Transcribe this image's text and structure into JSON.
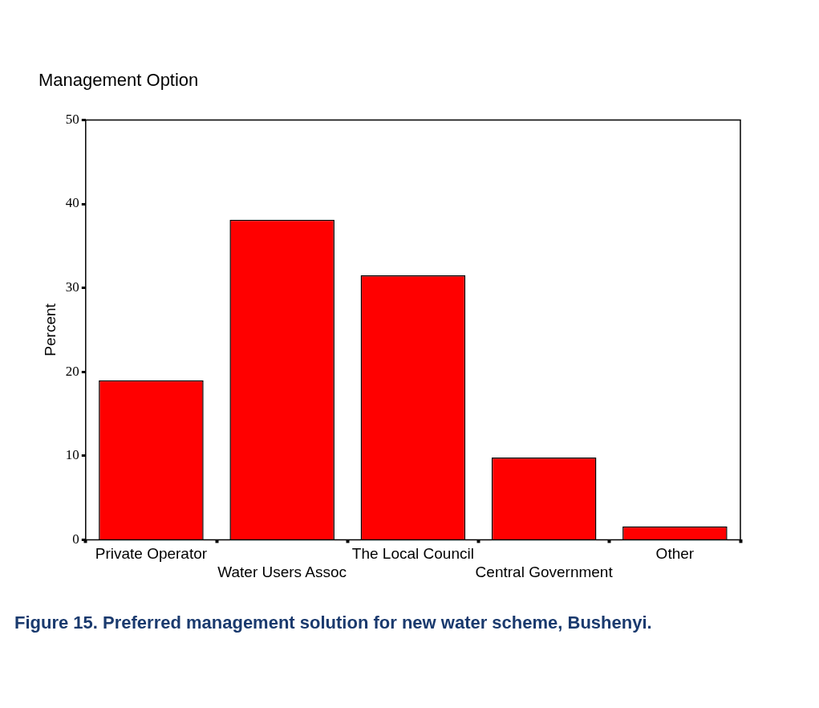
{
  "chart_data": {
    "type": "bar",
    "title": "Management Option",
    "ylabel": "Percent",
    "categories": [
      "Private Operator",
      "Water Users Assoc",
      "The Local Council",
      "Central Government",
      "Other"
    ],
    "values": [
      19.0,
      38.1,
      31.5,
      9.8,
      1.6
    ],
    "color": "#ff0000",
    "ylim": [
      0,
      50
    ],
    "yticks": [
      0,
      10,
      20,
      30,
      40,
      50
    ],
    "grid": false,
    "legend": false,
    "annotations": [
      "Figure 15.  Preferred management solution for new water scheme, Bushenyi."
    ]
  }
}
